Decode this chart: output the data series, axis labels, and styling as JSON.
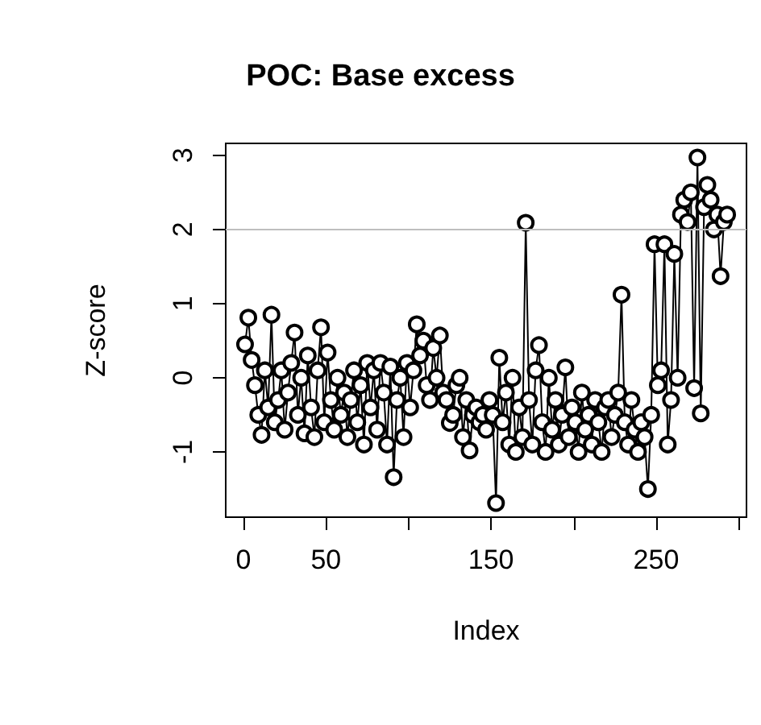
{
  "chart_data": {
    "type": "line",
    "title": "POC: Base excess",
    "xlabel": "Index",
    "ylabel": "Z-score",
    "x": [
      1,
      3,
      5,
      7,
      9,
      11,
      13,
      15,
      17,
      19,
      21,
      23,
      25,
      27,
      29,
      31,
      33,
      35,
      37,
      39,
      41,
      43,
      45,
      47,
      49,
      51,
      53,
      55,
      57,
      59,
      61,
      63,
      65,
      67,
      69,
      71,
      73,
      75,
      77,
      79,
      81,
      83,
      85,
      87,
      89,
      91,
      93,
      95,
      97,
      99,
      101,
      103,
      105,
      107,
      109,
      111,
      113,
      115,
      117,
      119,
      121,
      123,
      125,
      127,
      129,
      131,
      133,
      135,
      137,
      139,
      141,
      143,
      145,
      147,
      149,
      151,
      153,
      155,
      157,
      159,
      161,
      163,
      165,
      167,
      169,
      171,
      173,
      175,
      177,
      179,
      181,
      183,
      185,
      187,
      189,
      191,
      193,
      195,
      197,
      199,
      201,
      203,
      205,
      207,
      209,
      211,
      213,
      215,
      217,
      219,
      221,
      223,
      225,
      227,
      229,
      231,
      233,
      235,
      237,
      239,
      241,
      243,
      245,
      247,
      249,
      251,
      253,
      255,
      257,
      259,
      261,
      263,
      265,
      267,
      269,
      271,
      273,
      275,
      277,
      279,
      281,
      283,
      285,
      287,
      289,
      291,
      293
    ],
    "series": [
      {
        "color": "#000000",
        "values": [
          0.45,
          0.81,
          0.24,
          -0.1,
          -0.5,
          -0.77,
          0.1,
          -0.4,
          0.85,
          -0.6,
          -0.3,
          0.1,
          -0.7,
          -0.2,
          0.2,
          0.61,
          -0.5,
          0.0,
          -0.75,
          0.3,
          -0.4,
          -0.8,
          0.1,
          0.68,
          -0.6,
          0.34,
          -0.3,
          -0.7,
          0.0,
          -0.5,
          -0.2,
          -0.8,
          -0.3,
          0.1,
          -0.6,
          -0.1,
          -0.9,
          0.2,
          -0.4,
          0.1,
          -0.7,
          0.2,
          -0.2,
          -0.9,
          0.15,
          -1.34,
          -0.3,
          0.0,
          -0.8,
          0.2,
          -0.4,
          0.1,
          0.72,
          0.3,
          0.5,
          -0.1,
          -0.3,
          0.4,
          0.0,
          0.57,
          -0.2,
          -0.3,
          -0.61,
          -0.5,
          -0.1,
          0.0,
          -0.8,
          -0.3,
          -0.98,
          -0.5,
          -0.4,
          -0.6,
          -0.5,
          -0.7,
          -0.3,
          -0.5,
          -1.69,
          0.27,
          -0.6,
          -0.2,
          -0.9,
          0.0,
          -1.0,
          -0.4,
          -0.8,
          2.09,
          -0.3,
          -0.9,
          0.1,
          0.44,
          -0.6,
          -1.0,
          0.0,
          -0.7,
          -0.3,
          -0.9,
          -0.5,
          0.14,
          -0.8,
          -0.4,
          -0.6,
          -1.0,
          -0.2,
          -0.7,
          -0.5,
          -0.9,
          -0.3,
          -0.6,
          -1.0,
          -0.4,
          -0.3,
          -0.8,
          -0.5,
          -0.2,
          1.12,
          -0.6,
          -0.9,
          -0.3,
          -0.7,
          -1.0,
          -0.6,
          -0.8,
          -1.5,
          -0.5,
          1.8,
          -0.1,
          0.1,
          1.8,
          -0.9,
          -0.3,
          1.67,
          0.0,
          2.2,
          2.4,
          2.1,
          2.5,
          -0.14,
          2.97,
          -0.48,
          2.3,
          2.6,
          2.4,
          2.0,
          2.2,
          1.37,
          2.1,
          2.2
        ]
      }
    ],
    "xlim": [
      -10.7,
      304.7
    ],
    "xticks": [
      0,
      50,
      {
        "value": 100,
        "label": null
      },
      150,
      {
        "value": 200,
        "label": null
      },
      250,
      {
        "value": 300,
        "label": null
      }
    ],
    "ylim": [
      -1.88,
      3.16
    ],
    "yticks": [
      -1,
      0,
      1,
      2,
      3
    ],
    "ref_lines": [
      {
        "axis": "y",
        "value": 2,
        "color": "#bebebe"
      }
    ],
    "marker": "circle",
    "line_style": "solid",
    "grid": false
  }
}
